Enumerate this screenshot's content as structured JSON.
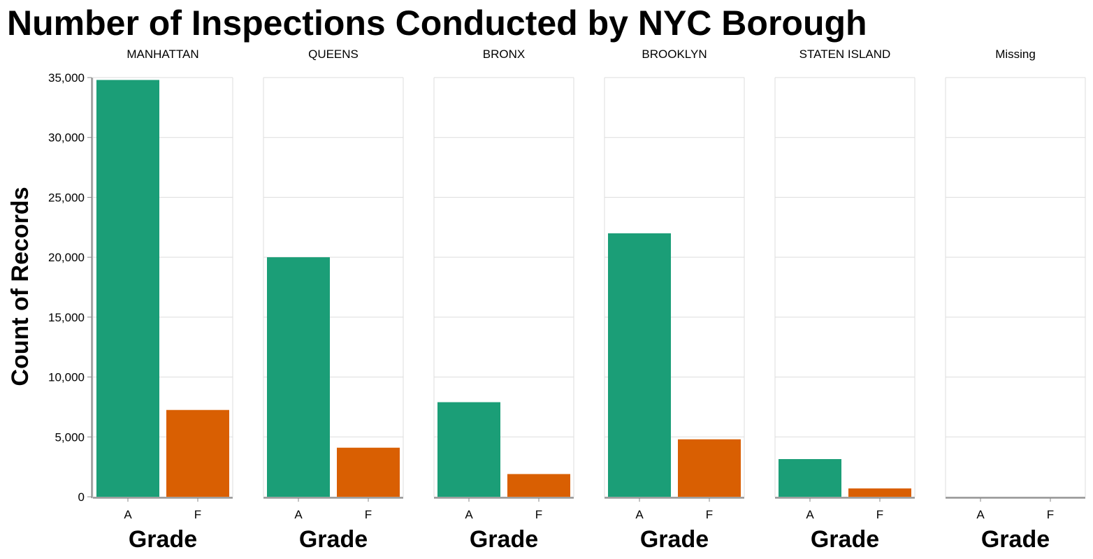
{
  "chart_data": {
    "type": "bar",
    "title": "Number of Inspections Conducted by NYC Borough",
    "ylabel": "Count of Records",
    "xlabel": "Grade",
    "ylim": [
      0,
      35000
    ],
    "yticks": [
      0,
      5000,
      10000,
      15000,
      20000,
      25000,
      30000,
      35000
    ],
    "ytick_labels": [
      "0",
      "5,000",
      "10,000",
      "15,000",
      "20,000",
      "25,000",
      "30,000",
      "35,000"
    ],
    "grid": true,
    "categories": [
      "A",
      "F"
    ],
    "colors": {
      "A": "#1b9e77",
      "F": "#d95f02"
    },
    "facets": [
      {
        "name": "MANHATTAN",
        "values": [
          34800,
          7250
        ]
      },
      {
        "name": "QUEENS",
        "values": [
          20000,
          4100
        ]
      },
      {
        "name": "BRONX",
        "values": [
          7900,
          1900
        ]
      },
      {
        "name": "BROOKLYN",
        "values": [
          22000,
          4800
        ]
      },
      {
        "name": "STATEN ISLAND",
        "values": [
          3150,
          700
        ]
      },
      {
        "name": "Missing",
        "values": [
          0,
          0
        ]
      }
    ]
  }
}
